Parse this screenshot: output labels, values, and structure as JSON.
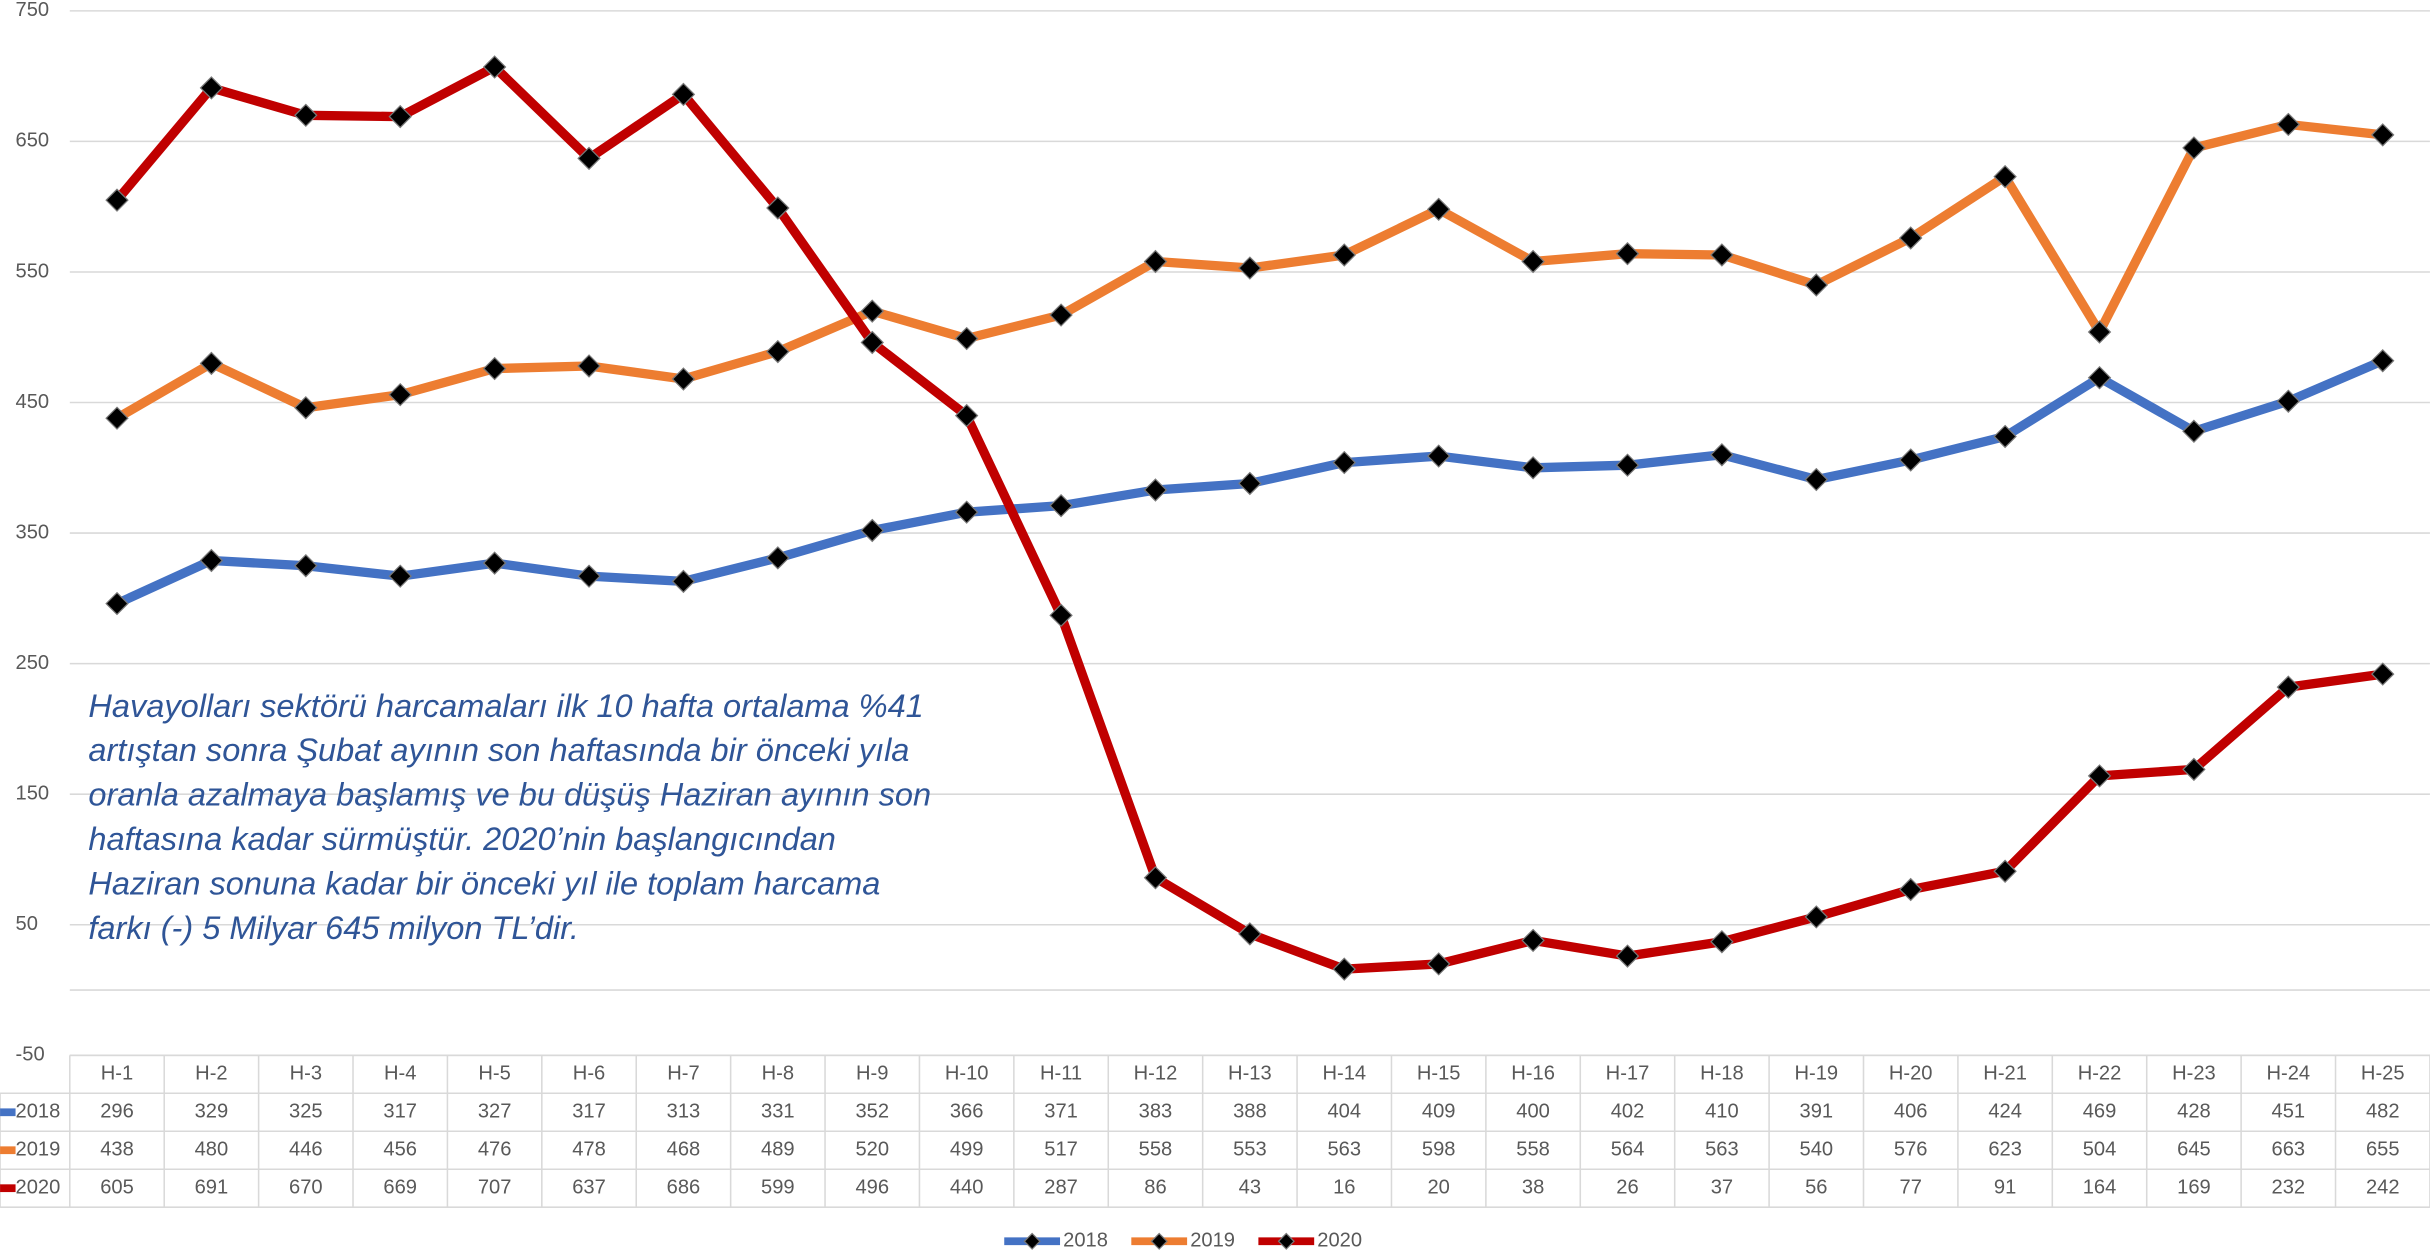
{
  "chart_data": {
    "type": "line",
    "categories": [
      "H-1",
      "H-2",
      "H-3",
      "H-4",
      "H-5",
      "H-6",
      "H-7",
      "H-8",
      "H-9",
      "H-10",
      "H-11",
      "H-12",
      "H-13",
      "H-14",
      "H-15",
      "H-16",
      "H-17",
      "H-18",
      "H-19",
      "H-20",
      "H-21",
      "H-22",
      "H-23",
      "H-24",
      "H-25"
    ],
    "series": [
      {
        "name": "2018",
        "color": "#4472c4",
        "values": [
          296,
          329,
          325,
          317,
          327,
          317,
          313,
          331,
          352,
          366,
          371,
          383,
          388,
          404,
          409,
          400,
          402,
          410,
          391,
          406,
          424,
          469,
          428,
          451,
          482
        ]
      },
      {
        "name": "2019",
        "color": "#ed7d31",
        "values": [
          438,
          480,
          446,
          456,
          476,
          478,
          468,
          489,
          520,
          499,
          517,
          558,
          553,
          563,
          598,
          558,
          564,
          563,
          540,
          576,
          623,
          504,
          645,
          663,
          655
        ]
      },
      {
        "name": "2020",
        "color": "#c00000",
        "values": [
          605,
          691,
          670,
          669,
          707,
          637,
          686,
          599,
          496,
          440,
          287,
          86,
          43,
          16,
          20,
          38,
          26,
          37,
          56,
          77,
          91,
          164,
          169,
          232,
          242
        ]
      }
    ],
    "ylim": [
      -50,
      750
    ],
    "yticks": [
      -50,
      50,
      150,
      250,
      350,
      450,
      550,
      650,
      750
    ],
    "grid": true,
    "legend": "bottom",
    "annotation": [
      "Havayolları sektörü harcamaları ilk 10 hafta ortalama %41",
      "artıştan sonra Şubat ayının son haftasında bir önceki yıla",
      "oranla azalmaya başlamış ve bu düşüş Haziran ayının son",
      "haftasına kadar sürmüştür. 2020’nin başlangıcından",
      "Haziran sonuna kadar bir önceki yıl ile toplam harcama",
      "farkı (-) 5 Milyar 645 milyon TL’dir."
    ]
  }
}
